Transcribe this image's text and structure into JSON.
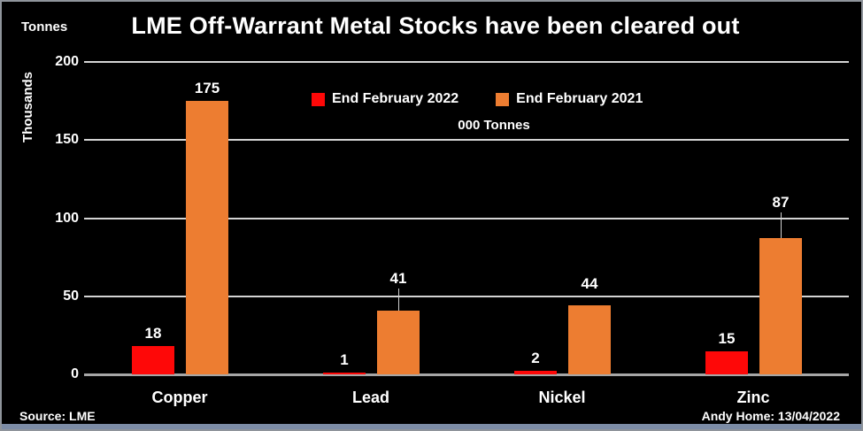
{
  "header": {
    "title": "LME Off-Warrant Metal Stocks have been cleared out",
    "top_left_unit": "Tonnes"
  },
  "footer": {
    "source": "Source: LME",
    "credit": "Andy Home: 13/04/2022"
  },
  "colors": {
    "background": "#000000",
    "text": "#FFFFFF",
    "gridline": "#D4D4D4",
    "baseline": "#A6A6A6",
    "series_2022": "#FE0808",
    "series_2021": "#ED7D31",
    "bottom_strip": "#7C8CA6"
  },
  "chart_data": {
    "type": "bar",
    "title": "LME Off-Warrant Metal Stocks have been cleared out",
    "subtitle": "000 Tonnes",
    "ylabel": "Thousands",
    "unit_label": "Tonnes",
    "categories": [
      "Copper",
      "Lead",
      "Nickel",
      "Zinc"
    ],
    "series": [
      {
        "name": "End February 2022",
        "color": "#FE0808",
        "values": [
          18,
          1,
          2,
          15
        ]
      },
      {
        "name": "End February 2021",
        "color": "#ED7D31",
        "values": [
          175,
          41,
          44,
          87
        ]
      }
    ],
    "ylim": [
      0,
      200
    ],
    "yticks": [
      0,
      50,
      100,
      150,
      200
    ],
    "grid": true,
    "legend_position": "top-center",
    "label_overrides": [
      {
        "series": 1,
        "index": 1,
        "lift": 22,
        "leader": true
      },
      {
        "series": 1,
        "index": 2,
        "lift": 10,
        "leader": false
      },
      {
        "series": 1,
        "index": 3,
        "lift": 26,
        "leader": true
      }
    ]
  }
}
